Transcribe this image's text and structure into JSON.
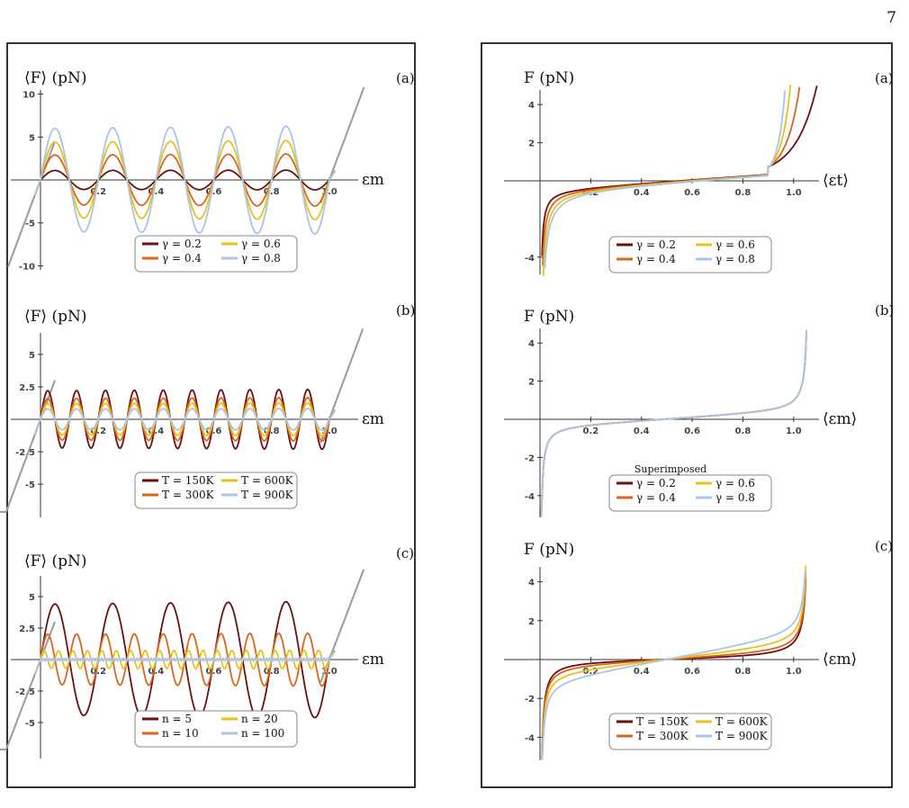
{
  "page_number": "7",
  "colors": {
    "c1": "#6b0f0f",
    "c2": "#d9661f",
    "c3": "#e8c21c",
    "c4": "#a8c4e6",
    "baseline": "#9a9a9a"
  },
  "chart_data": [
    {
      "id": "L-a",
      "type": "line",
      "panel_label": "(a)",
      "ylabel": "⟨F⟩ (pN)",
      "xlabel": "εm",
      "xlim": [
        0,
        1.1
      ],
      "ylim": [
        -11,
        11
      ],
      "xticks": [
        0.2,
        0.4,
        0.6,
        0.8,
        1.0
      ],
      "xtick_labels": [
        "0.2",
        "0.4",
        "0.6",
        "0.8",
        "1.0"
      ],
      "yticks": [
        -10,
        -5,
        5,
        10
      ],
      "ytick_labels": [
        "-10",
        "-5",
        "5",
        "10"
      ],
      "legend": [
        "γ = 0.2",
        "γ = 0.4",
        "γ = 0.6",
        "γ = 0.8"
      ],
      "series": [
        {
          "name": "γ = 0.2",
          "amplitude": 1.1
        },
        {
          "name": "γ = 0.4",
          "amplitude": 2.9
        },
        {
          "name": "γ = 0.6",
          "amplitude": 4.4
        },
        {
          "name": "γ = 0.8",
          "amplitude": 6.0
        }
      ],
      "periods": 5
    },
    {
      "id": "L-b",
      "type": "line",
      "panel_label": "(b)",
      "ylabel": "⟨F⟩ (pN)",
      "xlabel": "εm",
      "xlim": [
        0,
        1.1
      ],
      "ylim": [
        -7,
        7
      ],
      "xticks": [
        0.2,
        0.4,
        0.6,
        0.8,
        1.0
      ],
      "xtick_labels": [
        "0.2",
        "0.4",
        "0.6",
        "0.8",
        "1.0"
      ],
      "yticks": [
        -5,
        -2.5,
        2.5,
        5
      ],
      "ytick_labels": [
        "-5",
        "-2.5",
        "2.5",
        "5"
      ],
      "legend": [
        "T = 150K",
        "T = 300K",
        "T = 600K",
        "T = 900K"
      ],
      "series": [
        {
          "name": "T = 150K",
          "amplitude": 2.2
        },
        {
          "name": "T = 300K",
          "amplitude": 1.6
        },
        {
          "name": "T = 600K",
          "amplitude": 1.2
        },
        {
          "name": "T = 900K",
          "amplitude": 0.8
        }
      ],
      "periods": 10
    },
    {
      "id": "L-c",
      "type": "line",
      "panel_label": "(c)",
      "ylabel": "⟨F⟩ (pN)",
      "xlabel": "εm",
      "xlim": [
        0,
        1.1
      ],
      "ylim": [
        -7,
        7
      ],
      "xticks": [
        0.2,
        0.4,
        0.6,
        0.8,
        1.0
      ],
      "xtick_labels": [
        "0.2",
        "0.4",
        "0.6",
        "0.8",
        "1.0"
      ],
      "yticks": [
        -5,
        -2.5,
        2.5,
        5
      ],
      "ytick_labels": [
        "-5",
        "-2.5",
        "2.5",
        "5"
      ],
      "legend": [
        "n = 5",
        "n = 10",
        "n = 20",
        "n = 100"
      ],
      "series": [
        {
          "name": "n = 5",
          "amplitude": 4.4,
          "periods": 5
        },
        {
          "name": "n = 10",
          "amplitude": 2.0,
          "periods": 10
        },
        {
          "name": "n = 20",
          "amplitude": 0.7,
          "periods": 20
        },
        {
          "name": "n = 100",
          "amplitude": 0.1,
          "periods": 100
        }
      ]
    },
    {
      "id": "R-a",
      "type": "line",
      "panel_label": "(a)",
      "ylabel": "F (pN)",
      "xlabel": "⟨εt⟩",
      "xlim": [
        0,
        1.1
      ],
      "ylim": [
        -5,
        5
      ],
      "xticks": [
        0.2,
        0.4,
        0.6,
        0.8,
        1.0
      ],
      "xtick_labels": [
        "0.2",
        "0.4",
        "0.6",
        "0.8",
        "1.0"
      ],
      "yticks": [
        -4,
        2,
        4
      ],
      "ytick_labels": [
        "-4",
        "2",
        "4"
      ],
      "legend": [
        "γ = 0.2",
        "γ = 0.4",
        "γ = 0.6",
        "γ = 0.8"
      ]
    },
    {
      "id": "R-b",
      "type": "line",
      "panel_label": "(b)",
      "ylabel": "F (pN)",
      "xlabel": "⟨εm⟩",
      "xlim": [
        0,
        1.1
      ],
      "ylim": [
        -5,
        5
      ],
      "xticks": [
        0.2,
        0.4,
        0.6,
        0.8,
        1.0
      ],
      "xtick_labels": [
        "0.2",
        "0.4",
        "0.6",
        "0.8",
        "1.0"
      ],
      "yticks": [
        -4,
        -2,
        2,
        4
      ],
      "ytick_labels": [
        "-4",
        "-2",
        "2",
        "4"
      ],
      "annotation": "Superimposed",
      "legend": [
        "γ = 0.2",
        "γ = 0.4",
        "γ = 0.6",
        "γ = 0.8"
      ]
    },
    {
      "id": "R-c",
      "type": "line",
      "panel_label": "(c)",
      "ylabel": "F (pN)",
      "xlabel": "⟨εm⟩",
      "xlim": [
        0,
        1.1
      ],
      "ylim": [
        -5,
        5
      ],
      "xticks": [
        0.2,
        0.4,
        0.6,
        0.8,
        1.0
      ],
      "xtick_labels": [
        "0.2",
        "0.4",
        "0.6",
        "0.8",
        "1.0"
      ],
      "yticks": [
        -4,
        -2,
        2,
        4
      ],
      "ytick_labels": [
        "-4",
        "-2",
        "2",
        "4"
      ],
      "legend": [
        "T = 150K",
        "T = 300K",
        "T = 600K",
        "T = 900K"
      ]
    }
  ]
}
